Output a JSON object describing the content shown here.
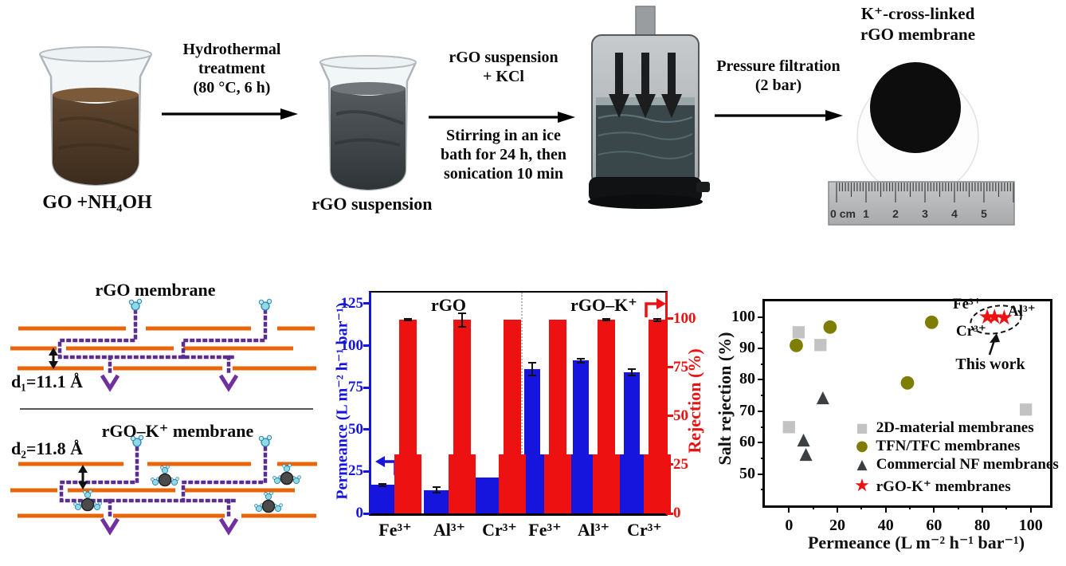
{
  "process": {
    "beaker1_label": "GO +NH₄OH",
    "step1": [
      "Hydrothermal",
      "treatment",
      "(80 °C, 6 h)"
    ],
    "beaker2_label": "rGO suspension",
    "step2_top": [
      "rGO suspension",
      "+  KCl"
    ],
    "step2_bottom": [
      "Stirring in an ice",
      "bath for 24 h, then",
      "sonication 10 min"
    ],
    "step3": [
      "Pressure filtration",
      "(2 bar)"
    ],
    "membrane_title": [
      "K⁺-cross-linked",
      "rGO membrane"
    ],
    "ruler_labels": [
      "0 cm",
      "1",
      "2",
      "3",
      "4",
      "5"
    ]
  },
  "schematic": {
    "panel1_title": "rGO membrane",
    "panel1_spacing": "d₁=11.1 Å",
    "panel2_title": "rGO–K⁺ membrane",
    "panel2_spacing": "d₂=11.8 Å"
  },
  "colors": {
    "blue": "#1515dd",
    "red": "#ed1111",
    "orange": "#e8650a",
    "purple": "#5b2d8e",
    "purple_dark": "#7030a0",
    "olive": "#7d7d00",
    "gray_marker": "#c3c3c3",
    "dark_marker": "#3d4043"
  },
  "chart_data": [
    {
      "type": "bar",
      "title": "",
      "group_labels": [
        "rGO",
        "rGO–K⁺"
      ],
      "categories": [
        "Fe³⁺",
        "Al³⁺",
        "Cr³⁺",
        "Fe³⁺",
        "Al³⁺",
        "Cr³⁺"
      ],
      "series": [
        {
          "name": "Permeance",
          "axis": "left",
          "color": "#1515dd",
          "values": [
            17,
            14,
            21.5,
            86,
            91,
            84
          ],
          "errors": [
            0.7,
            1.5,
            0.4,
            4,
            1.4,
            2
          ]
        },
        {
          "name": "Rejection",
          "axis": "right",
          "color": "#ed1111",
          "values": [
            99.6,
            99.5,
            99.7,
            99.6,
            99.5,
            99.4
          ],
          "errors": [
            0.5,
            3.5,
            0.4,
            0.4,
            0.5,
            0.7
          ]
        }
      ],
      "ylabel_left": "Permeance (L m⁻² h⁻¹ bar⁻¹)",
      "ylabel_right": "Rejection (%)",
      "yticks_left": [
        0,
        25,
        50,
        75,
        100,
        125
      ],
      "yticks_right": [
        0,
        25,
        50,
        75,
        100
      ],
      "ylim_left": [
        0,
        131.6
      ],
      "ylim_right": [
        0,
        113.5
      ],
      "legend_position": "none",
      "grid": false
    },
    {
      "type": "scatter",
      "xlabel": "Permeance (L m⁻² h⁻¹ bar⁻¹)",
      "ylabel": "Salt rejection (%)",
      "xlim": [
        -10,
        108
      ],
      "ylim": [
        40,
        105
      ],
      "xticks": [
        0,
        20,
        40,
        60,
        80,
        100
      ],
      "xticks_minor": [
        10,
        30,
        50,
        70,
        90
      ],
      "yticks": [
        50,
        60,
        70,
        80,
        90,
        100
      ],
      "yticks_minor": [
        45,
        55,
        65,
        75,
        85,
        95
      ],
      "grid": false,
      "legend_position": "inside-right",
      "series": [
        {
          "name": "2D-material membranes",
          "marker": "square",
          "color": "#c3c3c3",
          "points": [
            [
              4,
              95.5
            ],
            [
              13,
              91.5
            ],
            [
              0,
              65.5
            ],
            [
              98,
              71
            ]
          ]
        },
        {
          "name": "TFN/TFC membranes",
          "marker": "circle",
          "color": "#7d7d00",
          "points": [
            [
              3,
              91
            ],
            [
              17,
              97
            ],
            [
              59,
              98.5
            ],
            [
              49,
              79
            ]
          ]
        },
        {
          "name": "Commercial NF membranes",
          "marker": "triangle",
          "color": "#3d4043",
          "points": [
            [
              14,
              74.5
            ],
            [
              6,
              61
            ],
            [
              7,
              56.5
            ]
          ]
        },
        {
          "name": "rGO-K⁺ membranes",
          "marker": "star",
          "color": "#ed1111",
          "points": [
            [
              82,
              99.8
            ],
            [
              85,
              100
            ],
            [
              89,
              99.7
            ]
          ]
        }
      ],
      "annotations": {
        "fe": "Fe³⁺",
        "al": "Al³⁺",
        "cr": "Cr³⁺",
        "this_work": "This work"
      }
    }
  ]
}
